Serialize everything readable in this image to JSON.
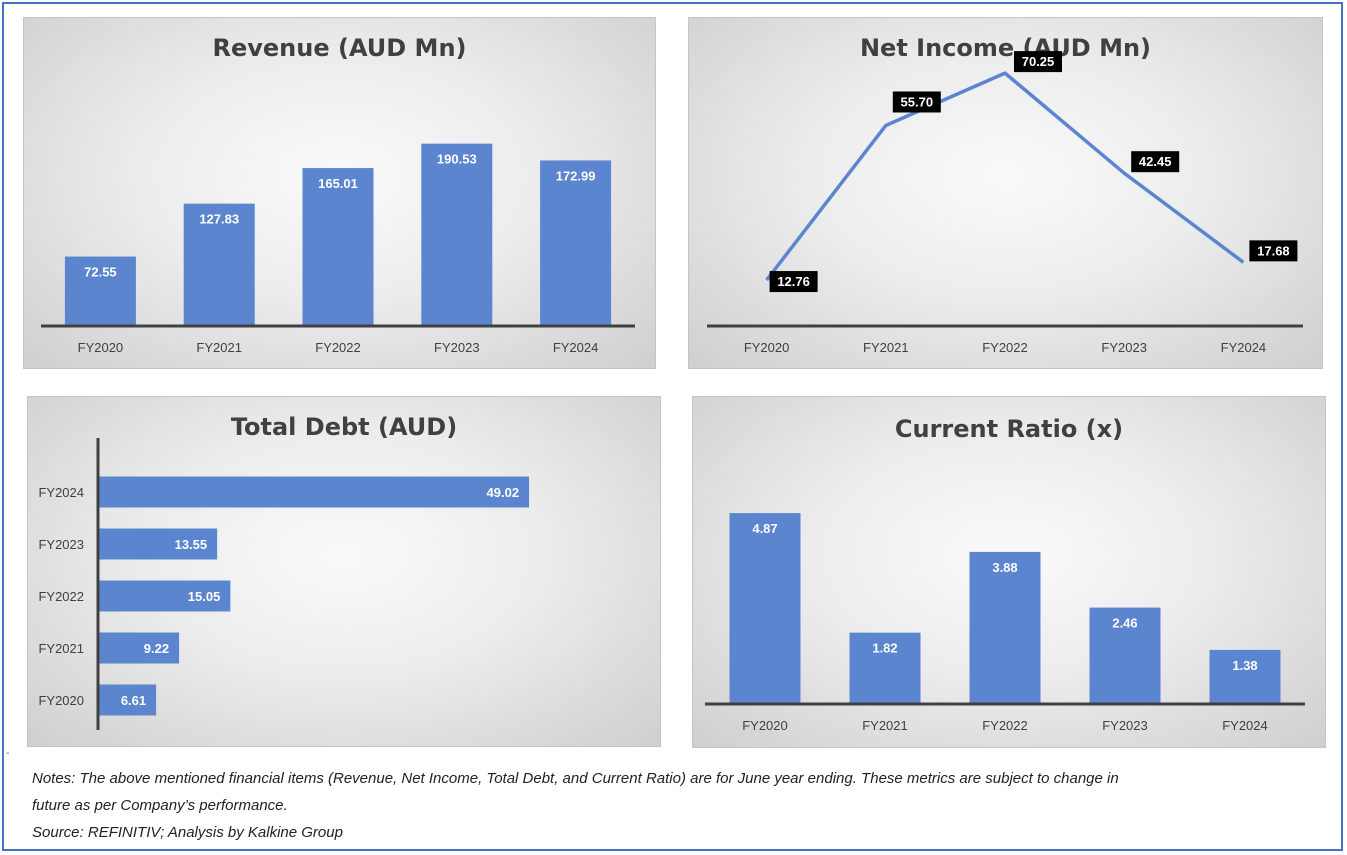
{
  "chart_data": [
    {
      "type": "bar",
      "title": "Revenue (AUD Mn)",
      "categories": [
        "FY2020",
        "FY2021",
        "FY2022",
        "FY2023",
        "FY2024"
      ],
      "values": [
        72.55,
        127.83,
        165.01,
        190.53,
        172.99
      ],
      "value_labels": [
        "72.55",
        "127.83",
        "165.01",
        "190.53",
        "172.99"
      ],
      "ylim": [
        0,
        210
      ],
      "grid": false,
      "color": "#5b86cf"
    },
    {
      "type": "line",
      "title": "Net Income (AUD Mn)",
      "categories": [
        "FY2020",
        "FY2021",
        "FY2022",
        "FY2023",
        "FY2024"
      ],
      "values": [
        12.76,
        55.7,
        70.25,
        42.45,
        17.68
      ],
      "value_labels": [
        "12.76",
        "55.70",
        "70.25",
        "42.45",
        "17.68"
      ],
      "ylim": [
        0,
        80
      ],
      "grid": false,
      "color": "#5b86cf"
    },
    {
      "type": "bar",
      "orientation": "horizontal",
      "title": "Total Debt (AUD)",
      "categories": [
        "FY2024",
        "FY2023",
        "FY2022",
        "FY2021",
        "FY2020"
      ],
      "values": [
        49.02,
        13.55,
        15.05,
        9.22,
        6.61
      ],
      "value_labels": [
        "49.02",
        "13.55",
        "15.05",
        "9.22",
        "6.61"
      ],
      "xlim": [
        0,
        63
      ],
      "grid": false,
      "color": "#5b86cf"
    },
    {
      "type": "bar",
      "title": "Current Ratio (x)",
      "categories": [
        "FY2020",
        "FY2021",
        "FY2022",
        "FY2023",
        "FY2024"
      ],
      "values": [
        4.87,
        1.82,
        3.88,
        2.46,
        1.38
      ],
      "value_labels": [
        "4.87",
        "1.82",
        "3.88",
        "2.46",
        "1.38"
      ],
      "ylim": [
        0,
        5.0
      ],
      "grid": false,
      "color": "#5b86cf"
    }
  ],
  "notes": {
    "line1": "Notes: The above mentioned financial items (Revenue, Net Income, Total Debt, and Current Ratio) are for June year ending. These metrics are subject to change in",
    "line2": "future as per Company’s performance.",
    "source": "Source: REFINITIV; Analysis by Kalkine Group"
  }
}
